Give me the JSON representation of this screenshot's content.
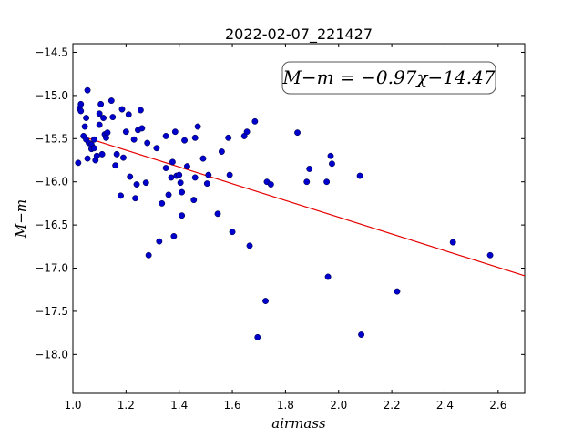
{
  "chart_data": {
    "type": "scatter",
    "title": "2022-02-07_221427",
    "xlabel": "airmass",
    "ylabel": "M−m",
    "xlim": [
      1.0,
      2.7
    ],
    "ylim": [
      -14.4,
      -18.45
    ],
    "y_inverted": true,
    "grid": false,
    "annotation": "M−m = −0.97χ−14.47",
    "fit": {
      "slope": -0.97,
      "intercept": -14.47,
      "x_range": [
        1.05,
        2.7
      ],
      "color": "#e60000"
    },
    "point_color": "#0000cc",
    "xticks": [
      "1.0",
      "1.2",
      "1.4",
      "1.6",
      "1.8",
      "2.0",
      "2.2",
      "2.4",
      "2.6"
    ],
    "xtick_values": [
      1.0,
      1.2,
      1.4,
      1.6,
      1.8,
      2.0,
      2.2,
      2.4,
      2.6
    ],
    "yticks": [
      "−14.5",
      "−15.0",
      "−15.5",
      "−16.0",
      "−16.5",
      "−17.0",
      "−17.5",
      "−18.0"
    ],
    "ytick_values": [
      -14.5,
      -15.0,
      -15.5,
      -16.0,
      -16.5,
      -17.0,
      -17.5,
      -18.0
    ],
    "points": [
      [
        1.02,
        -15.78
      ],
      [
        1.025,
        -15.15
      ],
      [
        1.03,
        -15.18
      ],
      [
        1.03,
        -15.1
      ],
      [
        1.04,
        -15.47
      ],
      [
        1.045,
        -15.36
      ],
      [
        1.05,
        -15.26
      ],
      [
        1.05,
        -15.51
      ],
      [
        1.055,
        -14.94
      ],
      [
        1.055,
        -15.73
      ],
      [
        1.06,
        -15.55
      ],
      [
        1.07,
        -15.57
      ],
      [
        1.07,
        -15.62
      ],
      [
        1.08,
        -15.61
      ],
      [
        1.08,
        -15.51
      ],
      [
        1.085,
        -15.75
      ],
      [
        1.09,
        -15.7
      ],
      [
        1.1,
        -15.21
      ],
      [
        1.1,
        -15.34
      ],
      [
        1.105,
        -15.1
      ],
      [
        1.11,
        -15.68
      ],
      [
        1.115,
        -15.26
      ],
      [
        1.12,
        -15.45
      ],
      [
        1.125,
        -15.49
      ],
      [
        1.13,
        -15.43
      ],
      [
        1.145,
        -15.06
      ],
      [
        1.15,
        -15.25
      ],
      [
        1.16,
        -15.81
      ],
      [
        1.165,
        -15.68
      ],
      [
        1.18,
        -16.16
      ],
      [
        1.185,
        -15.16
      ],
      [
        1.19,
        -15.72
      ],
      [
        1.2,
        -15.42
      ],
      [
        1.21,
        -15.22
      ],
      [
        1.215,
        -15.94
      ],
      [
        1.23,
        -15.51
      ],
      [
        1.235,
        -16.19
      ],
      [
        1.24,
        -16.03
      ],
      [
        1.245,
        -15.4
      ],
      [
        1.255,
        -15.17
      ],
      [
        1.26,
        -15.38
      ],
      [
        1.275,
        -16.01
      ],
      [
        1.28,
        -15.55
      ],
      [
        1.285,
        -16.85
      ],
      [
        1.315,
        -15.61
      ],
      [
        1.325,
        -16.69
      ],
      [
        1.335,
        -16.25
      ],
      [
        1.35,
        -15.84
      ],
      [
        1.35,
        -15.47
      ],
      [
        1.36,
        -16.15
      ],
      [
        1.37,
        -15.95
      ],
      [
        1.375,
        -15.77
      ],
      [
        1.38,
        -16.63
      ],
      [
        1.385,
        -15.42
      ],
      [
        1.39,
        -15.93
      ],
      [
        1.4,
        -15.92
      ],
      [
        1.405,
        -16.01
      ],
      [
        1.41,
        -16.39
      ],
      [
        1.41,
        -16.12
      ],
      [
        1.42,
        -15.52
      ],
      [
        1.43,
        -15.82
      ],
      [
        1.455,
        -16.21
      ],
      [
        1.46,
        -15.49
      ],
      [
        1.46,
        -15.95
      ],
      [
        1.47,
        -15.36
      ],
      [
        1.49,
        -15.73
      ],
      [
        1.505,
        -16.02
      ],
      [
        1.51,
        -15.92
      ],
      [
        1.545,
        -16.37
      ],
      [
        1.56,
        -15.65
      ],
      [
        1.585,
        -15.49
      ],
      [
        1.59,
        -15.92
      ],
      [
        1.6,
        -16.58
      ],
      [
        1.645,
        -15.47
      ],
      [
        1.655,
        -15.42
      ],
      [
        1.665,
        -16.74
      ],
      [
        1.685,
        -15.3
      ],
      [
        1.695,
        -17.8
      ],
      [
        1.725,
        -17.38
      ],
      [
        1.73,
        -16.0
      ],
      [
        1.745,
        -16.03
      ],
      [
        1.845,
        -15.43
      ],
      [
        1.88,
        -16.0
      ],
      [
        1.89,
        -15.85
      ],
      [
        1.955,
        -16.0
      ],
      [
        1.96,
        -17.1
      ],
      [
        1.97,
        -15.7
      ],
      [
        1.975,
        -15.79
      ],
      [
        2.08,
        -15.93
      ],
      [
        2.085,
        -17.77
      ],
      [
        2.22,
        -17.27
      ],
      [
        2.43,
        -16.7
      ],
      [
        2.57,
        -16.85
      ]
    ]
  }
}
